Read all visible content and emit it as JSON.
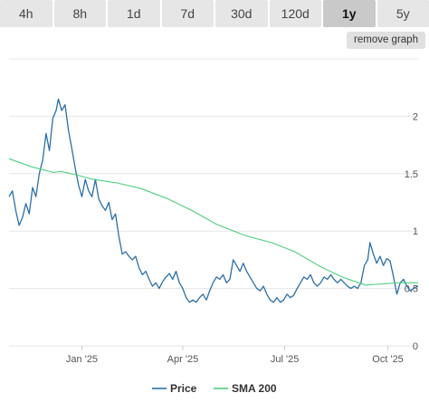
{
  "tabs": [
    {
      "label": "4h",
      "active": false
    },
    {
      "label": "8h",
      "active": false
    },
    {
      "label": "1d",
      "active": false
    },
    {
      "label": "7d",
      "active": false
    },
    {
      "label": "30d",
      "active": false
    },
    {
      "label": "120d",
      "active": false
    },
    {
      "label": "1y",
      "active": true
    },
    {
      "label": "5y",
      "active": false
    }
  ],
  "remove_graph_label": "remove graph",
  "colors": {
    "price": "#2a6fa8",
    "sma": "#4fcf80",
    "grid": "#e6e6e6"
  },
  "chart_data": {
    "type": "line",
    "x_start": "2024-10-28",
    "x_end": "2025-10-28",
    "x_ticks": [
      "Jan '25",
      "Apr '25",
      "Jul '25",
      "Oct '25"
    ],
    "y_ticks": [
      "0",
      "0.5",
      "1",
      "1.5",
      "2"
    ],
    "ylim": [
      0,
      2.5
    ],
    "grid": true,
    "legend_position": "bottom-center",
    "series": [
      {
        "name": "Price",
        "points": [
          [
            "2024-10-28",
            1.3
          ],
          [
            "2024-10-31",
            1.35
          ],
          [
            "2024-11-03",
            1.18
          ],
          [
            "2024-11-06",
            1.05
          ],
          [
            "2024-11-09",
            1.12
          ],
          [
            "2024-11-12",
            1.24
          ],
          [
            "2024-11-15",
            1.15
          ],
          [
            "2024-11-18",
            1.38
          ],
          [
            "2024-11-21",
            1.3
          ],
          [
            "2024-11-24",
            1.5
          ],
          [
            "2024-11-27",
            1.62
          ],
          [
            "2024-11-30",
            1.85
          ],
          [
            "2024-12-03",
            1.7
          ],
          [
            "2024-12-06",
            1.98
          ],
          [
            "2024-12-09",
            2.05
          ],
          [
            "2024-12-11",
            2.15
          ],
          [
            "2024-12-14",
            2.05
          ],
          [
            "2024-12-17",
            2.1
          ],
          [
            "2024-12-20",
            1.88
          ],
          [
            "2024-12-23",
            1.72
          ],
          [
            "2024-12-26",
            1.55
          ],
          [
            "2024-12-29",
            1.4
          ],
          [
            "2025-01-01",
            1.3
          ],
          [
            "2025-01-04",
            1.45
          ],
          [
            "2025-01-07",
            1.35
          ],
          [
            "2025-01-10",
            1.3
          ],
          [
            "2025-01-13",
            1.45
          ],
          [
            "2025-01-16",
            1.28
          ],
          [
            "2025-01-19",
            1.22
          ],
          [
            "2025-01-22",
            1.18
          ],
          [
            "2025-01-25",
            1.25
          ],
          [
            "2025-01-28",
            1.1
          ],
          [
            "2025-01-31",
            1.15
          ],
          [
            "2025-02-03",
            0.95
          ],
          [
            "2025-02-06",
            0.8
          ],
          [
            "2025-02-09",
            0.82
          ],
          [
            "2025-02-12",
            0.78
          ],
          [
            "2025-02-15",
            0.75
          ],
          [
            "2025-02-18",
            0.78
          ],
          [
            "2025-02-21",
            0.68
          ],
          [
            "2025-02-24",
            0.62
          ],
          [
            "2025-02-27",
            0.65
          ],
          [
            "2025-03-02",
            0.58
          ],
          [
            "2025-03-05",
            0.52
          ],
          [
            "2025-03-08",
            0.55
          ],
          [
            "2025-03-11",
            0.5
          ],
          [
            "2025-03-14",
            0.56
          ],
          [
            "2025-03-17",
            0.6
          ],
          [
            "2025-03-20",
            0.63
          ],
          [
            "2025-03-23",
            0.58
          ],
          [
            "2025-03-26",
            0.65
          ],
          [
            "2025-03-29",
            0.55
          ],
          [
            "2025-04-01",
            0.5
          ],
          [
            "2025-04-04",
            0.42
          ],
          [
            "2025-04-07",
            0.38
          ],
          [
            "2025-04-10",
            0.4
          ],
          [
            "2025-04-13",
            0.38
          ],
          [
            "2025-04-16",
            0.42
          ],
          [
            "2025-04-19",
            0.45
          ],
          [
            "2025-04-22",
            0.4
          ],
          [
            "2025-04-25",
            0.48
          ],
          [
            "2025-04-28",
            0.55
          ],
          [
            "2025-05-01",
            0.6
          ],
          [
            "2025-05-04",
            0.58
          ],
          [
            "2025-05-07",
            0.62
          ],
          [
            "2025-05-10",
            0.55
          ],
          [
            "2025-05-13",
            0.58
          ],
          [
            "2025-05-16",
            0.75
          ],
          [
            "2025-05-19",
            0.7
          ],
          [
            "2025-05-22",
            0.65
          ],
          [
            "2025-05-25",
            0.72
          ],
          [
            "2025-05-28",
            0.65
          ],
          [
            "2025-05-31",
            0.6
          ],
          [
            "2025-06-03",
            0.55
          ],
          [
            "2025-06-06",
            0.5
          ],
          [
            "2025-06-09",
            0.48
          ],
          [
            "2025-06-12",
            0.52
          ],
          [
            "2025-06-15",
            0.45
          ],
          [
            "2025-06-18",
            0.4
          ],
          [
            "2025-06-21",
            0.38
          ],
          [
            "2025-06-24",
            0.42
          ],
          [
            "2025-06-27",
            0.38
          ],
          [
            "2025-06-30",
            0.4
          ],
          [
            "2025-07-03",
            0.45
          ],
          [
            "2025-07-06",
            0.42
          ],
          [
            "2025-07-09",
            0.44
          ],
          [
            "2025-07-12",
            0.5
          ],
          [
            "2025-07-15",
            0.55
          ],
          [
            "2025-07-18",
            0.6
          ],
          [
            "2025-07-21",
            0.58
          ],
          [
            "2025-07-24",
            0.62
          ],
          [
            "2025-07-27",
            0.55
          ],
          [
            "2025-07-30",
            0.52
          ],
          [
            "2025-08-02",
            0.55
          ],
          [
            "2025-08-05",
            0.6
          ],
          [
            "2025-08-08",
            0.58
          ],
          [
            "2025-08-11",
            0.62
          ],
          [
            "2025-08-14",
            0.58
          ],
          [
            "2025-08-17",
            0.55
          ],
          [
            "2025-08-20",
            0.58
          ],
          [
            "2025-08-23",
            0.55
          ],
          [
            "2025-08-26",
            0.52
          ],
          [
            "2025-08-29",
            0.5
          ],
          [
            "2025-09-01",
            0.52
          ],
          [
            "2025-09-04",
            0.5
          ],
          [
            "2025-09-07",
            0.55
          ],
          [
            "2025-09-10",
            0.7
          ],
          [
            "2025-09-13",
            0.75
          ],
          [
            "2025-09-15",
            0.9
          ],
          [
            "2025-09-18",
            0.8
          ],
          [
            "2025-09-21",
            0.72
          ],
          [
            "2025-09-24",
            0.78
          ],
          [
            "2025-09-27",
            0.7
          ],
          [
            "2025-09-30",
            0.76
          ],
          [
            "2025-10-03",
            0.74
          ],
          [
            "2025-10-06",
            0.6
          ],
          [
            "2025-10-09",
            0.45
          ],
          [
            "2025-10-12",
            0.55
          ],
          [
            "2025-10-15",
            0.58
          ],
          [
            "2025-10-18",
            0.52
          ],
          [
            "2025-10-21",
            0.48
          ],
          [
            "2025-10-24",
            0.5
          ],
          [
            "2025-10-28",
            0.52
          ]
        ]
      },
      {
        "name": "SMA 200",
        "points": [
          [
            "2024-10-28",
            1.63
          ],
          [
            "2024-11-17",
            1.56
          ],
          [
            "2024-12-07",
            1.51
          ],
          [
            "2024-12-13",
            1.52
          ],
          [
            "2024-12-27",
            1.49
          ],
          [
            "2025-01-11",
            1.45
          ],
          [
            "2025-02-01",
            1.42
          ],
          [
            "2025-02-23",
            1.37
          ],
          [
            "2025-03-19",
            1.28
          ],
          [
            "2025-04-09",
            1.18
          ],
          [
            "2025-05-01",
            1.06
          ],
          [
            "2025-05-27",
            0.96
          ],
          [
            "2025-06-19",
            0.9
          ],
          [
            "2025-07-10",
            0.82
          ],
          [
            "2025-07-31",
            0.7
          ],
          [
            "2025-08-21",
            0.6
          ],
          [
            "2025-09-11",
            0.53
          ],
          [
            "2025-09-27",
            0.54
          ],
          [
            "2025-10-10",
            0.55
          ],
          [
            "2025-10-28",
            0.55
          ]
        ]
      }
    ]
  }
}
